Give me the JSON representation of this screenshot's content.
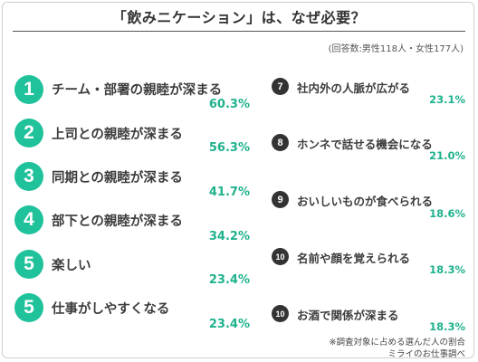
{
  "title": "「飲みニケーション」は、なぜ必要？",
  "note": "(回答数:男性118人・女性177人)",
  "left_items": [
    {
      "rank": "1",
      "label": "チーム・部署の親睦が深まる",
      "value": "60.3%"
    },
    {
      "rank": "2",
      "label": "上司との親睦が深まる",
      "value": "56.3%"
    },
    {
      "rank": "3",
      "label": "同期との親睦が深まる",
      "value": "41.7%"
    },
    {
      "rank": "4",
      "label": "部下との親睦が深まる",
      "value": "34.2%"
    },
    {
      "rank": "5",
      "label": "楽しい",
      "value": "23.4%"
    },
    {
      "rank": "5",
      "label": "仕事がしやすくなる",
      "value": "23.4%"
    }
  ],
  "right_items": [
    {
      "rank": "7",
      "label": "社内外の人脈が広がる",
      "value": "23.1%"
    },
    {
      "rank": "8",
      "label": "ホンネで話せる機会になる",
      "value": "21.0%"
    },
    {
      "rank": "9",
      "label": "おいしいものが食べられる",
      "value": "18.6%"
    },
    {
      "rank": "10",
      "label": "名前や顔を覚えられる",
      "value": "18.3%"
    },
    {
      "rank": "10",
      "label": "お酒で関係が深まる",
      "value": "18.3%"
    }
  ],
  "footnote": "※調査対象に占める選んだ人の割合",
  "source": "ミライのお仕事調べ",
  "colors": {
    "accent": "#1fc29b",
    "percent": "#1fb28d",
    "dark_badge": "#333333"
  }
}
